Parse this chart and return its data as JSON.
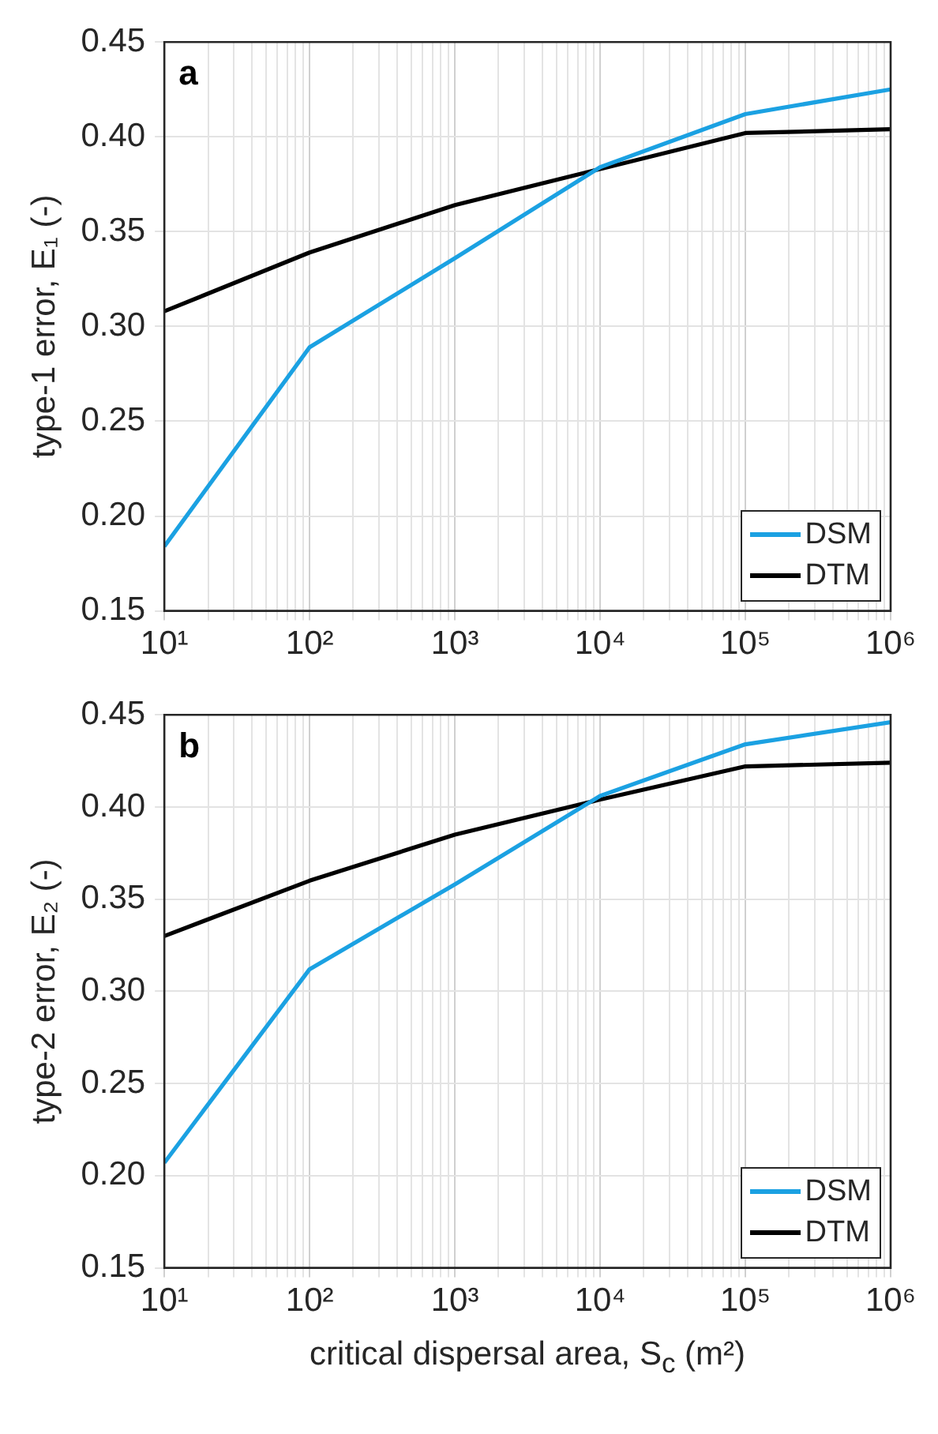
{
  "chart_data": [
    {
      "type": "line",
      "ylabel": "type-1 error, E₁ (-)",
      "annotations": [
        "a"
      ],
      "x": [
        10,
        100,
        1000,
        10000,
        100000,
        1000000
      ],
      "series": [
        {
          "name": "DSM",
          "color": "#1ba1e2",
          "values": [
            0.184,
            0.289,
            0.336,
            0.384,
            0.412,
            0.425
          ]
        },
        {
          "name": "DTM",
          "color": "#000000",
          "values": [
            0.308,
            0.339,
            0.364,
            0.383,
            0.402,
            0.404
          ]
        }
      ],
      "log": "x",
      "xlim": [
        10,
        1000000
      ],
      "ylim": [
        0.15,
        0.45
      ],
      "xticks": [
        {
          "value": 10,
          "label": "10¹"
        },
        {
          "value": 20,
          "label": null
        },
        {
          "value": 30,
          "label": null
        },
        {
          "value": 40,
          "label": null
        },
        {
          "value": 50,
          "label": null
        },
        {
          "value": 60,
          "label": null
        },
        {
          "value": 70,
          "label": null
        },
        {
          "value": 80,
          "label": null
        },
        {
          "value": 90,
          "label": null
        },
        {
          "value": 100,
          "label": "10²"
        },
        {
          "value": 200,
          "label": null
        },
        {
          "value": 300,
          "label": null
        },
        {
          "value": 400,
          "label": null
        },
        {
          "value": 500,
          "label": null
        },
        {
          "value": 600,
          "label": null
        },
        {
          "value": 700,
          "label": null
        },
        {
          "value": 800,
          "label": null
        },
        {
          "value": 900,
          "label": null
        },
        {
          "value": 1000,
          "label": "10³"
        },
        {
          "value": 2000,
          "label": null
        },
        {
          "value": 3000,
          "label": null
        },
        {
          "value": 4000,
          "label": null
        },
        {
          "value": 5000,
          "label": null
        },
        {
          "value": 6000,
          "label": null
        },
        {
          "value": 7000,
          "label": null
        },
        {
          "value": 8000,
          "label": null
        },
        {
          "value": 9000,
          "label": null
        },
        {
          "value": 10000,
          "label": "10⁴"
        },
        {
          "value": 20000,
          "label": null
        },
        {
          "value": 30000,
          "label": null
        },
        {
          "value": 40000,
          "label": null
        },
        {
          "value": 50000,
          "label": null
        },
        {
          "value": 60000,
          "label": null
        },
        {
          "value": 70000,
          "label": null
        },
        {
          "value": 80000,
          "label": null
        },
        {
          "value": 90000,
          "label": null
        },
        {
          "value": 100000,
          "label": "10⁵"
        },
        {
          "value": 200000,
          "label": null
        },
        {
          "value": 300000,
          "label": null
        },
        {
          "value": 400000,
          "label": null
        },
        {
          "value": 500000,
          "label": null
        },
        {
          "value": 600000,
          "label": null
        },
        {
          "value": 700000,
          "label": null
        },
        {
          "value": 800000,
          "label": null
        },
        {
          "value": 900000,
          "label": null
        },
        {
          "value": 1000000,
          "label": "10⁶"
        }
      ],
      "yticks": [
        {
          "value": 0.15,
          "label": "0.15"
        },
        {
          "value": 0.2,
          "label": "0.20"
        },
        {
          "value": 0.25,
          "label": "0.25"
        },
        {
          "value": 0.3,
          "label": "0.30"
        },
        {
          "value": 0.35,
          "label": "0.35"
        },
        {
          "value": 0.4,
          "label": "0.40"
        },
        {
          "value": 0.45,
          "label": "0.45"
        }
      ],
      "grid": true,
      "legend": "bottom right",
      "marker": "none",
      "line_style": "solid"
    },
    {
      "type": "line",
      "ylabel": "type-2 error, E₂ (-)",
      "xlabel": "critical dispersal area, S$_{c}$ (m²)",
      "annotations": [
        "b"
      ],
      "x": [
        10,
        100,
        1000,
        10000,
        100000,
        1000000
      ],
      "series": [
        {
          "name": "DSM",
          "color": "#1ba1e2",
          "values": [
            0.207,
            0.312,
            0.358,
            0.406,
            0.434,
            0.446
          ]
        },
        {
          "name": "DTM",
          "color": "#000000",
          "values": [
            0.33,
            0.36,
            0.385,
            0.404,
            0.422,
            0.424
          ]
        }
      ],
      "log": "x",
      "xlim": [
        10,
        1000000
      ],
      "ylim": [
        0.15,
        0.45
      ],
      "xticks": [
        {
          "value": 10,
          "label": "10¹"
        },
        {
          "value": 20,
          "label": null
        },
        {
          "value": 30,
          "label": null
        },
        {
          "value": 40,
          "label": null
        },
        {
          "value": 50,
          "label": null
        },
        {
          "value": 60,
          "label": null
        },
        {
          "value": 70,
          "label": null
        },
        {
          "value": 80,
          "label": null
        },
        {
          "value": 90,
          "label": null
        },
        {
          "value": 100,
          "label": "10²"
        },
        {
          "value": 200,
          "label": null
        },
        {
          "value": 300,
          "label": null
        },
        {
          "value": 400,
          "label": null
        },
        {
          "value": 500,
          "label": null
        },
        {
          "value": 600,
          "label": null
        },
        {
          "value": 700,
          "label": null
        },
        {
          "value": 800,
          "label": null
        },
        {
          "value": 900,
          "label": null
        },
        {
          "value": 1000,
          "label": "10³"
        },
        {
          "value": 2000,
          "label": null
        },
        {
          "value": 3000,
          "label": null
        },
        {
          "value": 4000,
          "label": null
        },
        {
          "value": 5000,
          "label": null
        },
        {
          "value": 6000,
          "label": null
        },
        {
          "value": 7000,
          "label": null
        },
        {
          "value": 8000,
          "label": null
        },
        {
          "value": 9000,
          "label": null
        },
        {
          "value": 10000,
          "label": "10⁴"
        },
        {
          "value": 20000,
          "label": null
        },
        {
          "value": 30000,
          "label": null
        },
        {
          "value": 40000,
          "label": null
        },
        {
          "value": 50000,
          "label": null
        },
        {
          "value": 60000,
          "label": null
        },
        {
          "value": 70000,
          "label": null
        },
        {
          "value": 80000,
          "label": null
        },
        {
          "value": 90000,
          "label": null
        },
        {
          "value": 100000,
          "label": "10⁵"
        },
        {
          "value": 200000,
          "label": null
        },
        {
          "value": 300000,
          "label": null
        },
        {
          "value": 400000,
          "label": null
        },
        {
          "value": 500000,
          "label": null
        },
        {
          "value": 600000,
          "label": null
        },
        {
          "value": 700000,
          "label": null
        },
        {
          "value": 800000,
          "label": null
        },
        {
          "value": 900000,
          "label": null
        },
        {
          "value": 1000000,
          "label": "10⁶"
        }
      ],
      "yticks": [
        {
          "value": 0.15,
          "label": "0.15"
        },
        {
          "value": 0.2,
          "label": "0.20"
        },
        {
          "value": 0.25,
          "label": "0.25"
        },
        {
          "value": 0.3,
          "label": "0.30"
        },
        {
          "value": 0.35,
          "label": "0.35"
        },
        {
          "value": 0.4,
          "label": "0.40"
        },
        {
          "value": 0.45,
          "label": "0.45"
        }
      ],
      "grid": true,
      "legend": "bottom right",
      "marker": "none",
      "line_style": "solid"
    }
  ]
}
